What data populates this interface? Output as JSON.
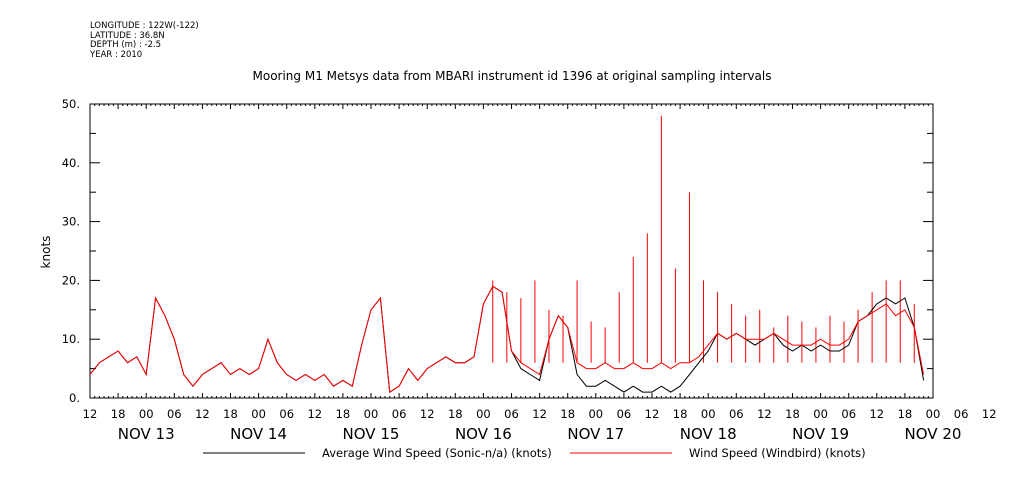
{
  "header": {
    "longitude": "LONGITUDE : 122W(-122)",
    "latitude": "LATITUDE : 36.8N",
    "depth": "DEPTH (m) : -2.5",
    "year": "YEAR : 2010"
  },
  "chart_data": {
    "type": "line",
    "title": "Mooring M1 Metsys data from MBARI instrument id 1396 at original sampling intervals",
    "ylabel": "knots",
    "xlabel": "",
    "ylim": [
      0,
      50
    ],
    "yticks": [
      "0.",
      "10.",
      "20.",
      "30.",
      "40.",
      "50."
    ],
    "xlim": [
      -12,
      168
    ],
    "hour_ticks": [
      "12",
      "18",
      "00",
      "06",
      "12",
      "18",
      "00",
      "06",
      "12",
      "18",
      "00",
      "06",
      "12",
      "18",
      "00",
      "06",
      "12",
      "18",
      "00",
      "06",
      "12",
      "18",
      "00",
      "06",
      "12",
      "18",
      "00",
      "06",
      "12",
      "18",
      "00",
      "06",
      "12"
    ],
    "day_labels": [
      "NOV 13",
      "NOV 14",
      "NOV 15",
      "NOV 16",
      "NOV 17",
      "NOV 18",
      "NOV 19",
      "NOV 20"
    ],
    "x_units": "hours from 2010-11-13 00:00",
    "series": [
      {
        "name": "Average Wind Speed (Sonic-n/a) (knots)",
        "color": "#000000",
        "x": [
          -12,
          -10,
          -8,
          -6,
          -4,
          -2,
          0,
          2,
          4,
          6,
          8,
          10,
          12,
          14,
          16,
          18,
          20,
          22,
          24,
          26,
          28,
          30,
          32,
          34,
          36,
          38,
          40,
          42,
          44,
          46,
          48,
          50,
          52,
          54,
          56,
          58,
          60,
          62,
          64,
          66,
          68,
          70,
          72,
          74,
          76,
          78,
          80,
          82,
          84,
          86,
          88,
          90,
          92,
          94,
          96,
          98,
          100,
          102,
          104,
          106,
          108,
          110,
          112,
          114,
          116,
          118,
          120,
          122,
          124,
          126,
          128,
          130,
          132,
          134,
          136,
          138,
          140,
          142,
          144,
          146,
          148,
          150,
          152,
          154,
          156,
          158,
          160,
          162,
          164,
          166
        ],
        "values": [
          4,
          6,
          7,
          8,
          6,
          7,
          4,
          17,
          14,
          10,
          4,
          2,
          4,
          5,
          6,
          4,
          5,
          4,
          5,
          10,
          6,
          4,
          3,
          4,
          3,
          4,
          2,
          3,
          2,
          9,
          15,
          17,
          1,
          2,
          5,
          3,
          5,
          6,
          7,
          6,
          6,
          7,
          16,
          19,
          18,
          8,
          5,
          4,
          3,
          10,
          14,
          12,
          4,
          2,
          2,
          3,
          2,
          1,
          2,
          1,
          1,
          2,
          1,
          2,
          4,
          6,
          8,
          11,
          10,
          11,
          10,
          9,
          10,
          11,
          9,
          8,
          9,
          8,
          9,
          8,
          8,
          9,
          13,
          14,
          16,
          17,
          16,
          17,
          12,
          3
        ]
      },
      {
        "name": "Wind Speed (Windbird) (knots)",
        "color": "#ff0000",
        "x": [
          -12,
          -10,
          -8,
          -6,
          -4,
          -2,
          0,
          2,
          4,
          6,
          8,
          10,
          12,
          14,
          16,
          18,
          20,
          22,
          24,
          26,
          28,
          30,
          32,
          34,
          36,
          38,
          40,
          42,
          44,
          46,
          48,
          50,
          52,
          54,
          56,
          58,
          60,
          62,
          64,
          66,
          68,
          70,
          72,
          74,
          76,
          78,
          80,
          82,
          84,
          86,
          88,
          90,
          92,
          94,
          96,
          98,
          100,
          102,
          104,
          106,
          108,
          110,
          112,
          114,
          116,
          118,
          120,
          122,
          124,
          126,
          128,
          130,
          132,
          134,
          136,
          138,
          140,
          142,
          144,
          146,
          148,
          150,
          152,
          154,
          156,
          158,
          160,
          162,
          164,
          166
        ],
        "values": [
          4,
          6,
          7,
          8,
          6,
          7,
          4,
          17,
          14,
          10,
          4,
          2,
          4,
          5,
          6,
          4,
          5,
          4,
          5,
          10,
          6,
          4,
          3,
          4,
          3,
          4,
          2,
          3,
          2,
          9,
          15,
          17,
          1,
          2,
          5,
          3,
          5,
          6,
          7,
          6,
          6,
          7,
          16,
          19,
          18,
          8,
          6,
          5,
          4,
          10,
          14,
          12,
          6,
          5,
          5,
          6,
          5,
          5,
          6,
          5,
          5,
          6,
          5,
          6,
          6,
          7,
          9,
          11,
          10,
          11,
          10,
          10,
          10,
          11,
          10,
          9,
          9,
          9,
          10,
          9,
          9,
          10,
          13,
          14,
          15,
          16,
          14,
          15,
          12,
          4
        ]
      }
    ],
    "spikes": {
      "name": "Wind Speed (Windbird) (knots)",
      "x": [
        74,
        77,
        80,
        83,
        86,
        89,
        92,
        95,
        98,
        101,
        104,
        107,
        110,
        113,
        116,
        119,
        122,
        125,
        128,
        131,
        134,
        137,
        140,
        143,
        146,
        149,
        152,
        155,
        158,
        161,
        164
      ],
      "values": [
        20,
        18,
        17,
        20,
        15,
        14,
        20,
        13,
        12,
        18,
        24,
        28,
        48,
        22,
        35,
        20,
        18,
        16,
        14,
        15,
        12,
        14,
        13,
        12,
        14,
        13,
        15,
        18,
        20,
        20,
        16
      ]
    }
  }
}
